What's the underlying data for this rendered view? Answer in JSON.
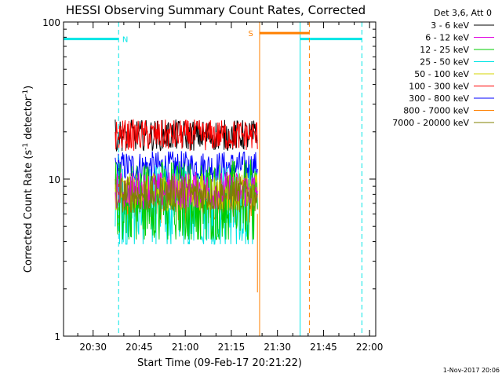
{
  "chart_data": {
    "type": "line",
    "title": "HESSI Observing Summary Count Rates, Corrected",
    "xlabel": "Start Time (09-Feb-17 20:21:22)",
    "ylabel_main": "Corrected Count Rate (s",
    "ylabel_sup1": "-1",
    "ylabel_mid": " detector",
    "ylabel_sup2": "-1",
    "ylabel_end": ")",
    "y_scale": "log",
    "ylim": [
      1,
      100
    ],
    "xlim_minutes": [
      20.37,
      22.1
    ],
    "x_tick_labels": [
      "20:30",
      "20:45",
      "21:00",
      "21:15",
      "21:30",
      "21:45",
      "22:00"
    ],
    "x_tick_values_minutes": [
      30,
      45,
      60,
      75,
      90,
      105,
      120
    ],
    "y_tick_labels": [
      "1",
      "10",
      "100"
    ],
    "y_tick_values": [
      1,
      10,
      100
    ],
    "legend_position": "right",
    "legend_title": "Det 3,6, Att 0",
    "series": [
      {
        "name": "3 - 6 keV",
        "color": "#000000",
        "base": 19,
        "spread": 0.1
      },
      {
        "name": "6 - 12 keV",
        "color": "#e000e0",
        "base": 8.5,
        "spread": 0.12
      },
      {
        "name": "12 - 25 keV",
        "color": "#00cc00",
        "base": 7.5,
        "spread": 0.25
      },
      {
        "name": "25 - 50 keV",
        "color": "#00e5e5",
        "base": 7.0,
        "spread": 0.25
      },
      {
        "name": "50 - 100 keV",
        "color": "#d4d400",
        "base": 8.3,
        "spread": 0.12
      },
      {
        "name": "100 - 300 keV",
        "color": "#ff0000",
        "base": 19,
        "spread": 0.1
      },
      {
        "name": "300 - 800 keV",
        "color": "#0000ff",
        "base": 12,
        "spread": 0.1
      },
      {
        "name": "800 - 7000 keV",
        "color": "#ff8000",
        "base": 7.3,
        "spread": 0.15
      },
      {
        "name": "7000 - 20000 keV",
        "color": "#808000",
        "base": 8.0,
        "spread": 0.12
      }
    ],
    "data_start_minutes": 37.2,
    "data_end_minutes": 83.5,
    "flags": [
      {
        "label": "N",
        "color": "#00e5e5",
        "y": 78,
        "segments": [
          [
            20.37,
            38.3
          ],
          [
            97.4,
            117.5
          ]
        ],
        "vlines_solid": [
          20.37,
          97.4
        ],
        "vlines_dashed": [
          38.3,
          117.5
        ],
        "label_at": 39.5
      },
      {
        "label": "S",
        "color": "#ff8000",
        "y": 85,
        "segments": [
          [
            84.2,
            100.4
          ]
        ],
        "vlines_solid": [
          84.2
        ],
        "vlines_dashed": [
          100.4
        ],
        "label_at": 80.5
      }
    ],
    "footer_date": "1-Nov-2017 20:06"
  }
}
